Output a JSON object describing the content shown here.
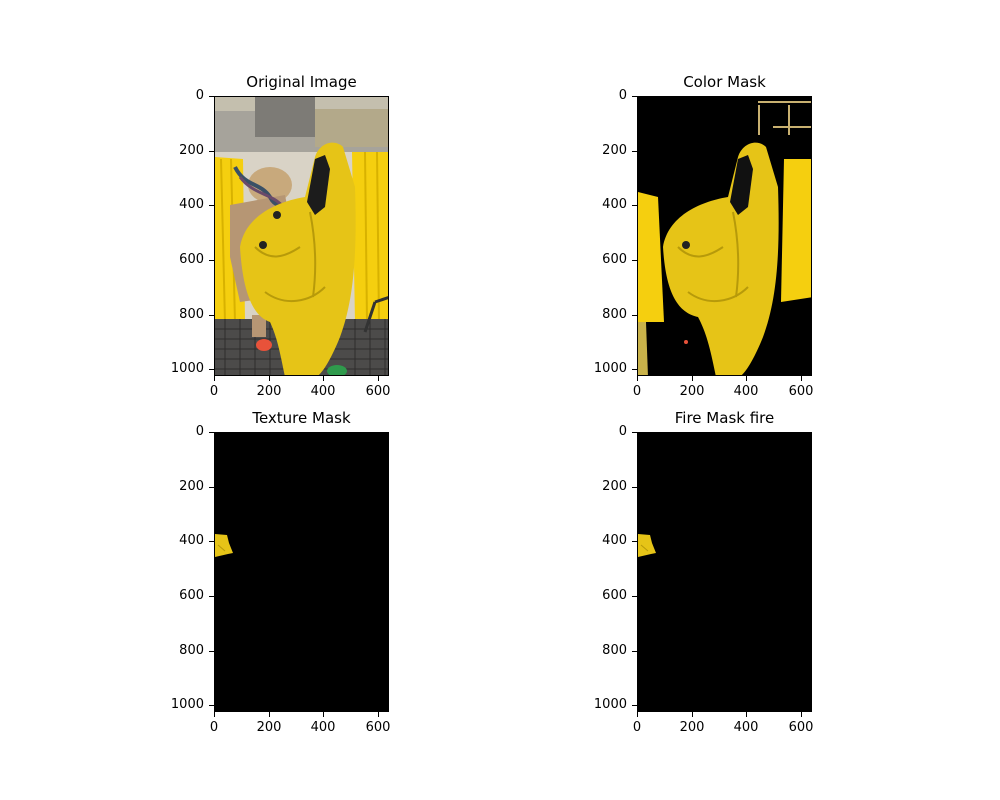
{
  "figure": {
    "panels": [
      {
        "id": "original",
        "title": "Original Image",
        "image": "photo-hazmat-suit",
        "x_ticks": [
          "0",
          "200",
          "400",
          "600"
        ],
        "y_ticks": [
          "0",
          "200",
          "400",
          "600",
          "800",
          "1000"
        ]
      },
      {
        "id": "color",
        "title": "Color Mask",
        "image": "yellow-mask",
        "x_ticks": [
          "0",
          "200",
          "400",
          "600"
        ],
        "y_ticks": [
          "0",
          "200",
          "400",
          "600",
          "800",
          "1000"
        ]
      },
      {
        "id": "texture",
        "title": "Texture Mask",
        "image": "small-patch-mask",
        "x_ticks": [
          "0",
          "200",
          "400",
          "600"
        ],
        "y_ticks": [
          "0",
          "200",
          "400",
          "600",
          "800",
          "1000"
        ]
      },
      {
        "id": "fire",
        "title": "Fire Mask fire",
        "image": "small-patch-mask",
        "x_ticks": [
          "0",
          "200",
          "400",
          "600"
        ],
        "y_ticks": [
          "0",
          "200",
          "400",
          "600",
          "800",
          "1000"
        ]
      }
    ],
    "image_width": 640,
    "image_height": 1024,
    "colors": {
      "suit_yellow": "#e6c417",
      "curtain_yellow": "#f5cf0f",
      "mask_background": "#000000"
    }
  }
}
